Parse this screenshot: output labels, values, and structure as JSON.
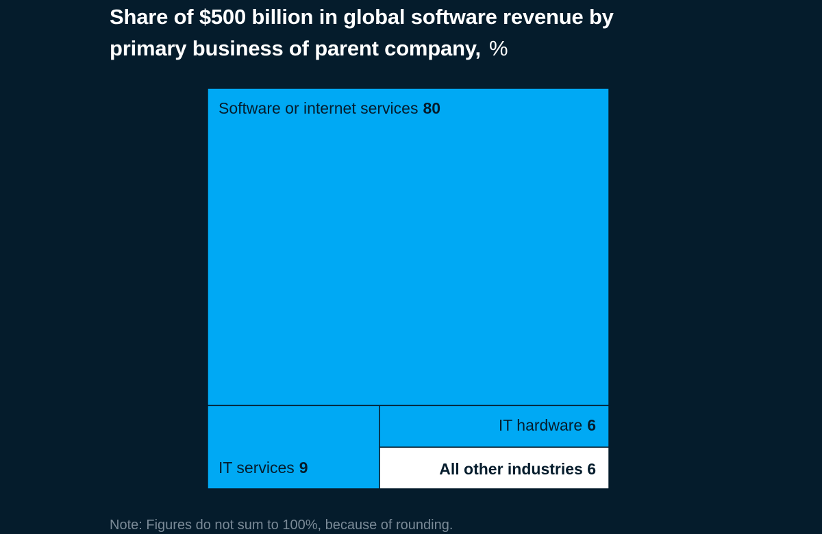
{
  "title": "Share of $500 billion in global software revenue by primary business of parent company,",
  "unit": "%",
  "note": "Note: Figures do not sum to 100%, because of rounding.",
  "chart_data": {
    "type": "treemap",
    "title": "Share of $500 billion in global software revenue by primary business of parent company, %",
    "categories": [
      "Software or internet services",
      "IT services",
      "IT hardware",
      "All other industries"
    ],
    "values": [
      80,
      9,
      6,
      6
    ],
    "colors": [
      "#00a9f4",
      "#00a9f4",
      "#00a9f4",
      "#ffffff"
    ],
    "labels": [
      {
        "name": "Software or internet services",
        "value": "80"
      },
      {
        "name": "IT services",
        "value": "9"
      },
      {
        "name": "IT hardware",
        "value": "6"
      },
      {
        "name": "All other industries 6",
        "value": ""
      }
    ]
  }
}
